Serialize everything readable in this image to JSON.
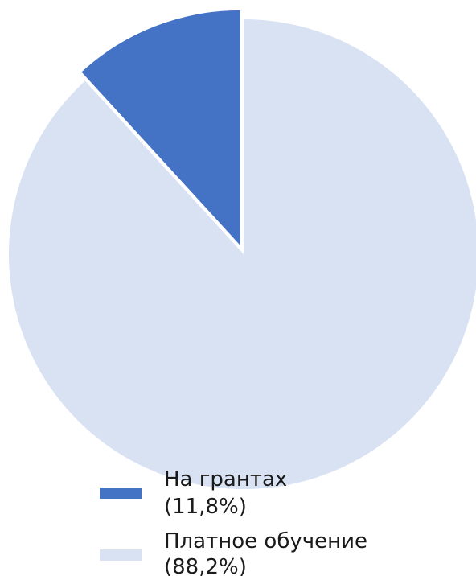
{
  "chart_data": {
    "type": "pie",
    "slices": [
      {
        "label": "На грантах",
        "value": 11.8,
        "pct_label": "(11,8%)",
        "color": "#4472C4",
        "exploded": true
      },
      {
        "label": "Платное обучение",
        "value": 88.2,
        "pct_label": "(88,2%)",
        "color": "#D9E2F3",
        "exploded": false
      }
    ],
    "start_angle": "12 o'clock",
    "direction": "counterclockwise",
    "legend_position": "bottom-center"
  }
}
